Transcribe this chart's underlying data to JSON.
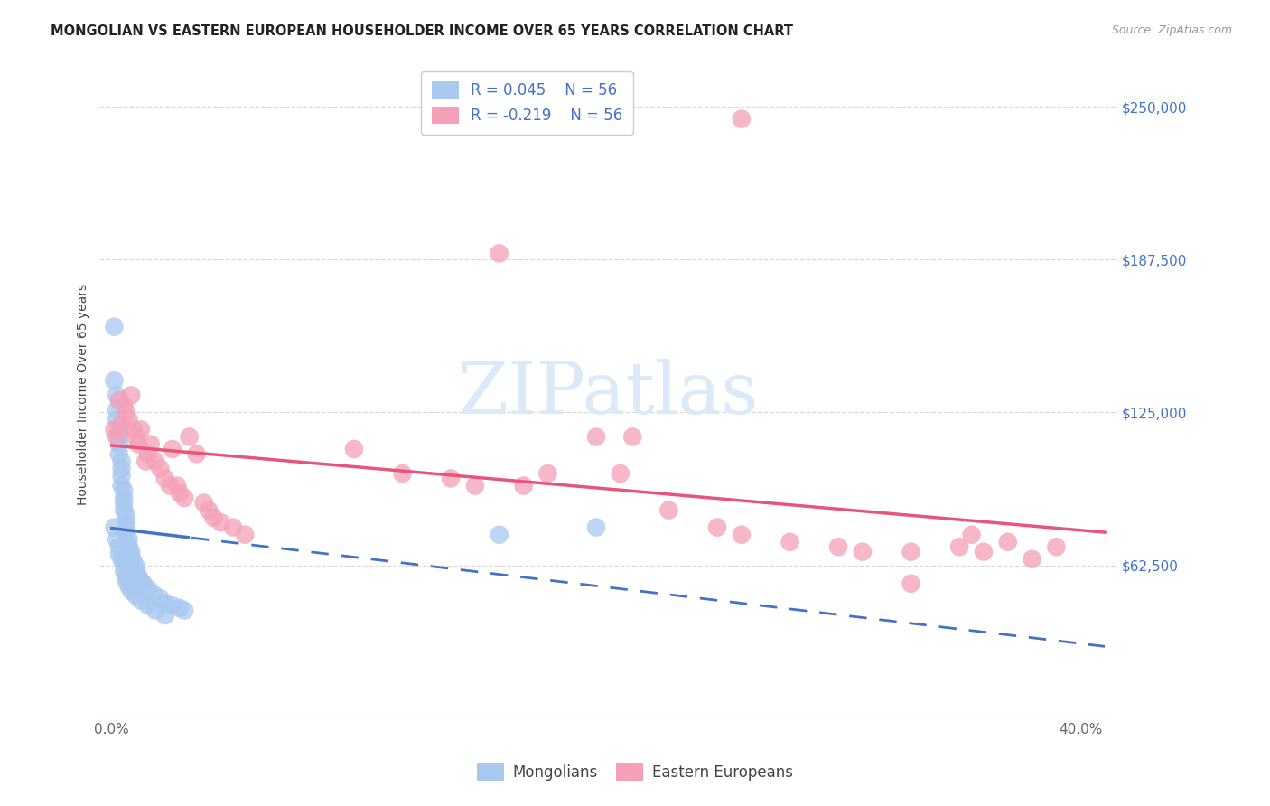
{
  "title": "MONGOLIAN VS EASTERN EUROPEAN HOUSEHOLDER INCOME OVER 65 YEARS CORRELATION CHART",
  "source": "Source: ZipAtlas.com",
  "ylabel": "Householder Income Over 65 years",
  "ytick_vals": [
    0,
    62500,
    125000,
    187500,
    250000
  ],
  "ytick_labels": [
    "",
    "$62,500",
    "$125,000",
    "$187,500",
    "$250,000"
  ],
  "xtick_vals": [
    0.0,
    0.1,
    0.2,
    0.3,
    0.4
  ],
  "xtick_labels": [
    "0.0%",
    "",
    "",
    "",
    "40.0%"
  ],
  "ylim": [
    0,
    265000
  ],
  "xlim": [
    -0.005,
    0.415
  ],
  "mongolian_R": 0.045,
  "mongolian_N": 56,
  "eastern_R": -0.219,
  "eastern_N": 56,
  "mongolian_color": "#a8c8f0",
  "eastern_color": "#f4a0b8",
  "mongolian_line_color": "#4472c4",
  "eastern_line_color": "#e8557a",
  "label_color": "#4472c4",
  "grid_color": "#d8d8d8",
  "background_color": "#ffffff",
  "watermark_color": "#daeaf8",
  "title_fontsize": 10.5,
  "source_fontsize": 9,
  "tick_fontsize": 11,
  "mongolian_x": [
    0.001,
    0.001,
    0.002,
    0.002,
    0.002,
    0.003,
    0.003,
    0.003,
    0.003,
    0.004,
    0.004,
    0.004,
    0.004,
    0.005,
    0.005,
    0.005,
    0.005,
    0.006,
    0.006,
    0.006,
    0.006,
    0.007,
    0.007,
    0.008,
    0.008,
    0.009,
    0.01,
    0.01,
    0.011,
    0.012,
    0.013,
    0.015,
    0.017,
    0.02,
    0.022,
    0.025,
    0.028,
    0.03,
    0.001,
    0.002,
    0.003,
    0.003,
    0.004,
    0.005,
    0.005,
    0.006,
    0.006,
    0.007,
    0.008,
    0.01,
    0.012,
    0.015,
    0.018,
    0.022,
    0.16,
    0.2
  ],
  "mongolian_y": [
    160000,
    138000,
    132000,
    126000,
    122000,
    118000,
    115000,
    112000,
    108000,
    105000,
    102000,
    99000,
    95000,
    93000,
    90000,
    88000,
    85000,
    83000,
    80000,
    78000,
    75000,
    73000,
    70000,
    68000,
    66000,
    64000,
    62000,
    60000,
    58000,
    56000,
    55000,
    53000,
    51000,
    49000,
    47000,
    46000,
    45000,
    44000,
    78000,
    73000,
    70000,
    67000,
    65000,
    63000,
    60000,
    58000,
    56000,
    54000,
    52000,
    50000,
    48000,
    46000,
    44000,
    42000,
    75000,
    78000
  ],
  "eastern_x": [
    0.001,
    0.002,
    0.003,
    0.004,
    0.005,
    0.006,
    0.007,
    0.008,
    0.009,
    0.01,
    0.011,
    0.012,
    0.014,
    0.015,
    0.016,
    0.018,
    0.02,
    0.022,
    0.024,
    0.025,
    0.027,
    0.028,
    0.03,
    0.032,
    0.035,
    0.038,
    0.04,
    0.042,
    0.045,
    0.05,
    0.055,
    0.1,
    0.12,
    0.14,
    0.15,
    0.16,
    0.17,
    0.18,
    0.2,
    0.21,
    0.215,
    0.23,
    0.25,
    0.26,
    0.28,
    0.3,
    0.31,
    0.33,
    0.35,
    0.355,
    0.36,
    0.37,
    0.38,
    0.39,
    0.26,
    0.33
  ],
  "eastern_y": [
    118000,
    115000,
    130000,
    120000,
    128000,
    125000,
    122000,
    132000,
    118000,
    115000,
    112000,
    118000,
    105000,
    108000,
    112000,
    105000,
    102000,
    98000,
    95000,
    110000,
    95000,
    92000,
    90000,
    115000,
    108000,
    88000,
    85000,
    82000,
    80000,
    78000,
    75000,
    110000,
    100000,
    98000,
    95000,
    190000,
    95000,
    100000,
    115000,
    100000,
    115000,
    85000,
    78000,
    75000,
    72000,
    70000,
    68000,
    68000,
    70000,
    75000,
    68000,
    72000,
    65000,
    70000,
    245000,
    55000
  ]
}
